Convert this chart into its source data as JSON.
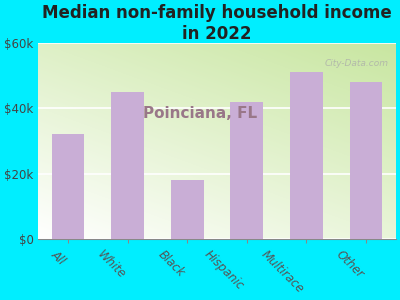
{
  "title": "Median non-family household income\nin 2022",
  "subtitle": "Poinciana, FL",
  "categories": [
    "All",
    "White",
    "Black",
    "Hispanic",
    "Multirace",
    "Other"
  ],
  "values": [
    32000,
    45000,
    18000,
    42000,
    51000,
    48000
  ],
  "bar_color": "#c9aed6",
  "title_fontsize": 12,
  "subtitle_fontsize": 11,
  "subtitle_color": "#997788",
  "title_color": "#222222",
  "background_color": "#00eeff",
  "ylim": [
    0,
    60000
  ],
  "yticks": [
    0,
    20000,
    40000,
    60000
  ],
  "ytick_labels": [
    "$0",
    "$20k",
    "$40k",
    "$60k"
  ],
  "watermark": "City-Data.com",
  "xlabel_rotation": -45
}
